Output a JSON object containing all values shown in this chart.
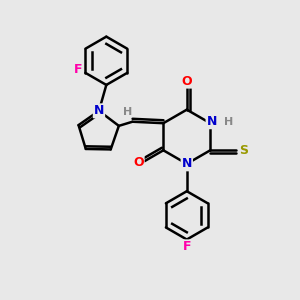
{
  "background_color": "#e8e8e8",
  "bond_color": "#000000",
  "bond_width": 1.8,
  "atom_colors": {
    "N": "#0000cc",
    "O": "#ff0000",
    "S": "#999900",
    "F": "#ff00aa",
    "H_label": "#888888",
    "C": "#000000"
  },
  "figsize": [
    3.0,
    3.0
  ],
  "dpi": 100,
  "xlim": [
    0,
    10
  ],
  "ylim": [
    0,
    10
  ],
  "font_size": 9
}
